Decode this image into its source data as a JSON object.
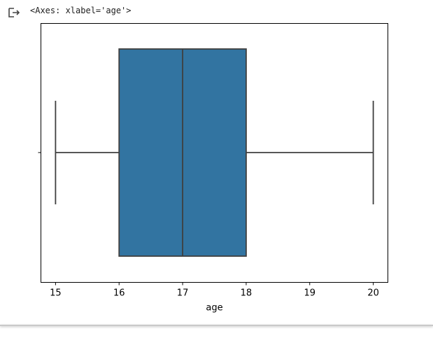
{
  "output": {
    "repr": "<Axes: xlabel='age'>",
    "icon": "output-redirect-icon"
  },
  "chart_data": {
    "type": "boxplot",
    "title": "",
    "xlabel": "age",
    "ylabel": "",
    "xlim": [
      14.77,
      20.23
    ],
    "xticks": [
      15,
      16,
      17,
      18,
      19,
      20
    ],
    "xtick_labels": [
      "15",
      "16",
      "17",
      "18",
      "19",
      "20"
    ],
    "orientation": "horizontal",
    "grid": false,
    "box": {
      "whisker_low": 15,
      "q1": 16,
      "median": 17,
      "q3": 18,
      "whisker_high": 20
    },
    "colors": {
      "box_fill": "#3274a1",
      "line": "#3f3f3f",
      "axes": "#000000"
    }
  }
}
